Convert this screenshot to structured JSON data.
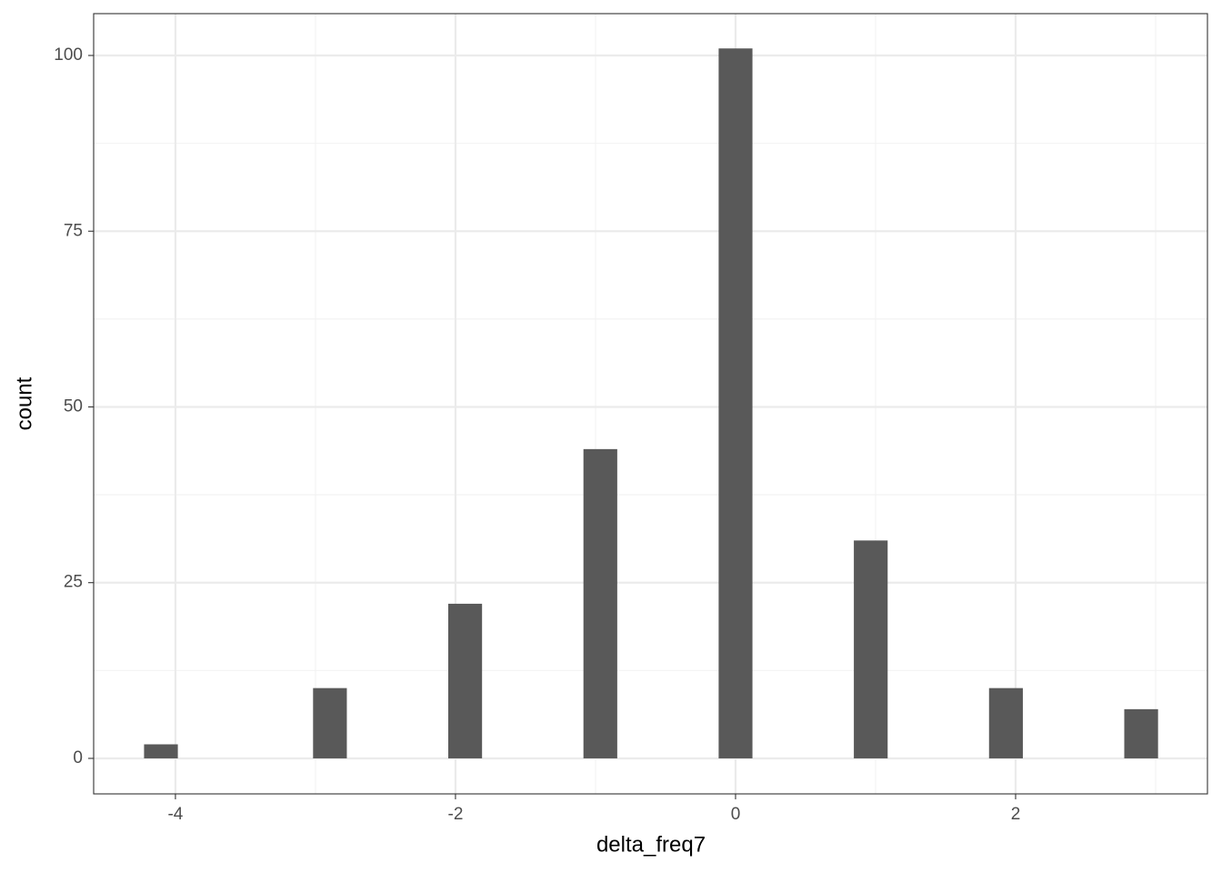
{
  "chart_data": {
    "type": "histogram",
    "x_label": "delta_freq7",
    "y_label": "count",
    "bins": [
      -4.2241,
      -3.9828,
      -3.7414,
      -3.5,
      -3.2586,
      -3.0172,
      -2.7759,
      -2.5345,
      -2.2931,
      -2.0517,
      -1.8103,
      -1.569,
      -1.3276,
      -1.0862,
      -0.8448,
      -0.6034,
      -0.3621,
      -0.1207,
      0.1207,
      0.3621,
      0.6034,
      0.8448,
      1.0862,
      1.3276,
      1.569,
      1.8103,
      2.0517,
      2.2931,
      2.5345,
      2.7759,
      3.0172
    ],
    "values": [
      2,
      0,
      0,
      0,
      0,
      10,
      0,
      0,
      0,
      22,
      0,
      0,
      0,
      44,
      0,
      0,
      0,
      101,
      0,
      0,
      0,
      31,
      0,
      0,
      0,
      10,
      0,
      0,
      0,
      7
    ],
    "color": "#595959",
    "xlim": [
      -4.584,
      3.37
    ],
    "ylim": [
      -5.05,
      105.95
    ],
    "xticks": [
      -4,
      -2,
      0,
      2
    ],
    "yticks": [
      0,
      25,
      50,
      75,
      100
    ],
    "grid": true
  }
}
